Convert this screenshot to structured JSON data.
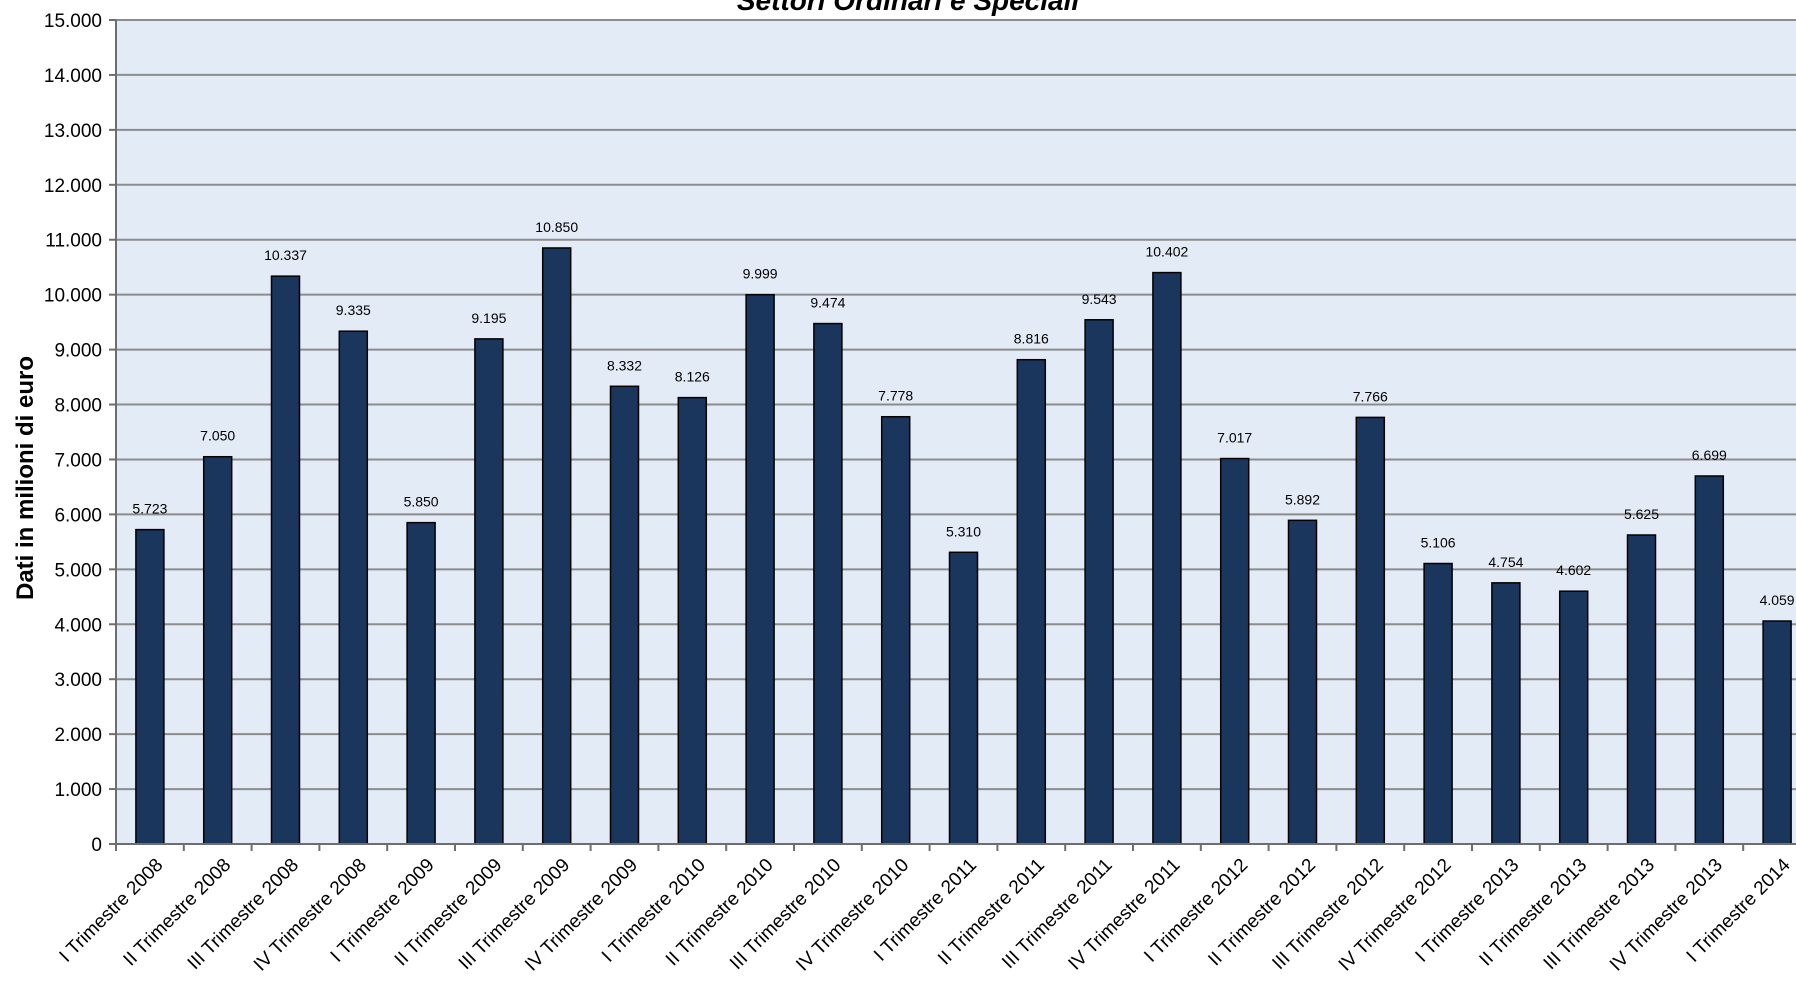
{
  "chart_data": {
    "type": "bar",
    "title": "Settori Ordinari e Speciali",
    "xlabel": "",
    "ylabel": "Dati in milioni di euro",
    "ylim": [
      0,
      15000
    ],
    "yticks": [
      0,
      1000,
      2000,
      3000,
      4000,
      5000,
      6000,
      7000,
      8000,
      9000,
      10000,
      11000,
      12000,
      13000,
      14000,
      15000
    ],
    "ytick_labels": [
      "0",
      "1.000",
      "2.000",
      "3.000",
      "4.000",
      "5.000",
      "6.000",
      "7.000",
      "8.000",
      "9.000",
      "10.000",
      "11.000",
      "12.000",
      "13.000",
      "14.000",
      "15.000"
    ],
    "grid": true,
    "categories": [
      "I Trimestre 2008",
      "II Trimestre 2008",
      "III Trimestre 2008",
      "IV Trimestre 2008",
      "I Trimestre 2009",
      "II Trimestre 2009",
      "III Trimestre 2009",
      "IV Trimestre 2009",
      "I Trimestre 2010",
      "II Trimestre 2010",
      "III Trimestre 2010",
      "IV Trimestre 2010",
      "I Trimestre 2011",
      "II Trimestre 2011",
      "III Trimestre 2011",
      "IV Trimestre 2011",
      "I Trimestre 2012",
      "II Trimestre 2012",
      "III Trimestre 2012",
      "IV Trimestre 2012",
      "I Trimestre 2013",
      "II Trimestre 2013",
      "III Trimestre 2013",
      "IV Trimestre 2013",
      "I Trimestre 2014"
    ],
    "values": [
      5723,
      7050,
      10337,
      9335,
      5850,
      9195,
      10850,
      8332,
      8126,
      9999,
      9474,
      7778,
      5310,
      8816,
      9543,
      10402,
      7017,
      5892,
      7766,
      5106,
      4754,
      4602,
      5625,
      6699,
      4059
    ],
    "data_labels": [
      "5.723",
      "7.050",
      "10.337",
      "9.335",
      "5.850",
      "9.195",
      "10.850",
      "8.332",
      "8.126",
      "9.999",
      "9.474",
      "7.778",
      "5.310",
      "8.816",
      "9.543",
      "10.402",
      "7.017",
      "5.892",
      "7.766",
      "5.106",
      "4.754",
      "4.602",
      "5.625",
      "6.699",
      "4.059"
    ],
    "colors": {
      "bar": "#1b365d",
      "bar_border": "#000000",
      "plot_background": "#e3ebf7",
      "grid": "#8c8c8c",
      "axis": "#6e6e6e"
    }
  }
}
